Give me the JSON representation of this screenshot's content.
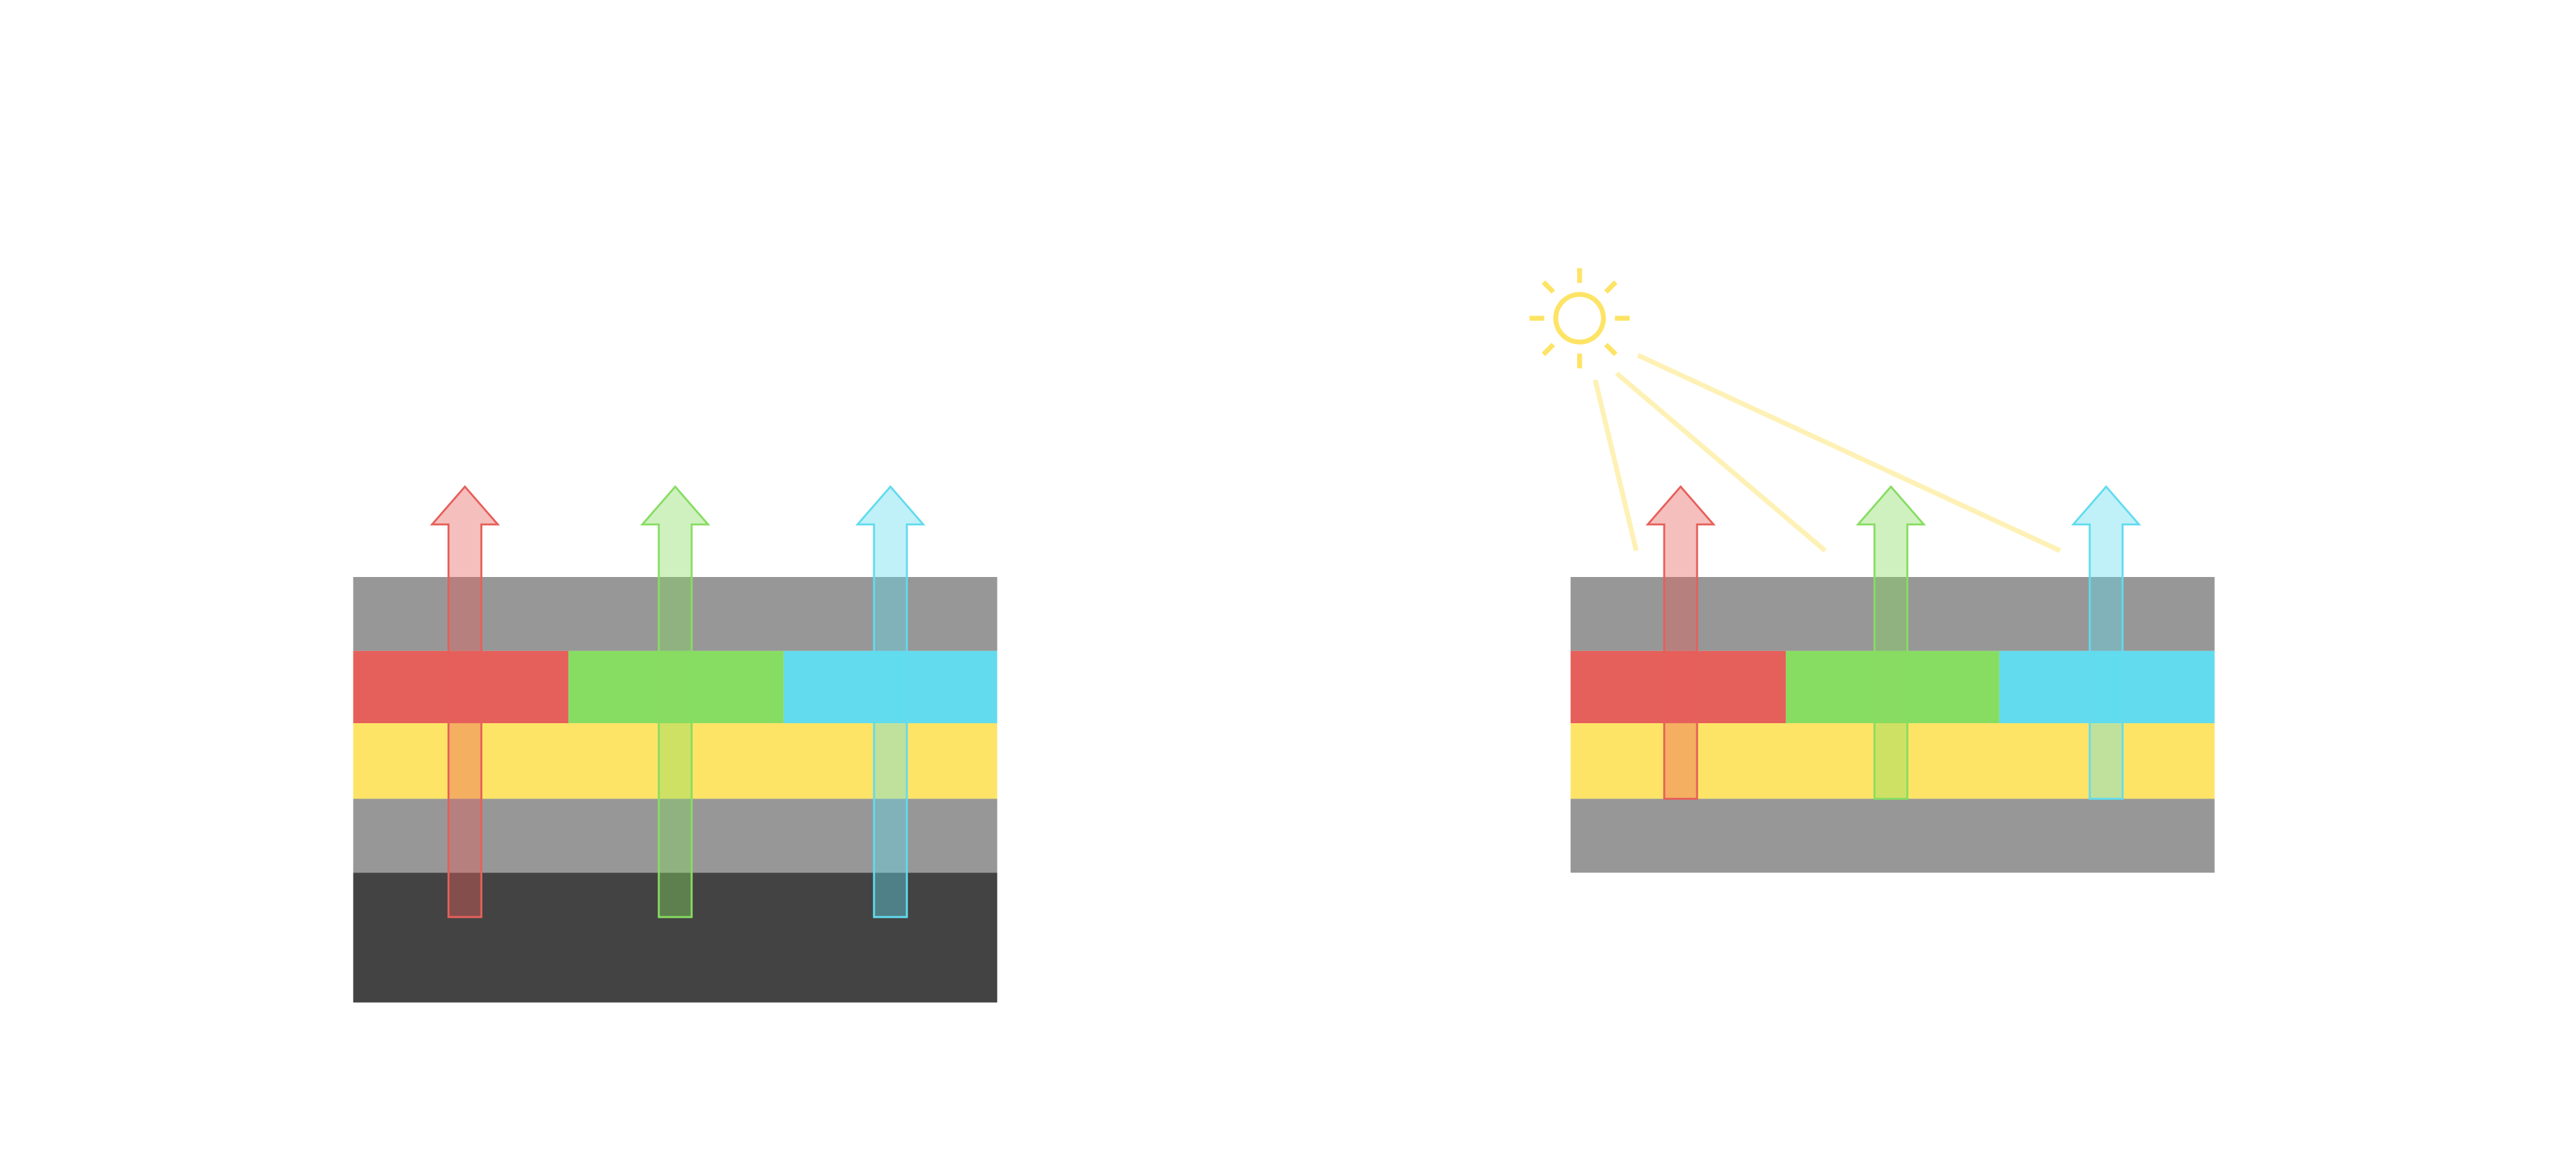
{
  "colors": {
    "background": "#ffffff",
    "gray_layer": "#979797",
    "dark_layer": "#434343",
    "yellow_layer": "#fee466",
    "red": "#e6605b",
    "green": "#87dd62",
    "cyan": "#62dbee",
    "sun": "#fee466",
    "light_ray": "#fef1b6"
  },
  "panels": [
    {
      "id": "left",
      "layers": [
        "gray",
        "color-filter",
        "yellow",
        "gray",
        "dark"
      ],
      "light_source": "backlight"
    },
    {
      "id": "right",
      "layers": [
        "gray",
        "color-filter",
        "yellow",
        "gray"
      ],
      "light_source": "sun"
    }
  ],
  "icons": [
    "sun-icon",
    "arrow-up-icon"
  ]
}
